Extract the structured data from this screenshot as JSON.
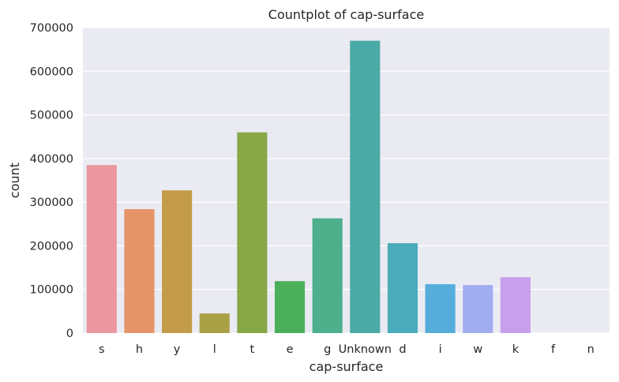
{
  "chart_data": {
    "type": "bar",
    "title": "Countplot of cap-surface",
    "xlabel": "cap-surface",
    "ylabel": "count",
    "categories": [
      "s",
      "h",
      "y",
      "l",
      "t",
      "e",
      "g",
      "Unknown",
      "d",
      "i",
      "w",
      "k",
      "f",
      "n"
    ],
    "values": [
      385000,
      284000,
      327000,
      45000,
      460000,
      119000,
      263000,
      670000,
      206000,
      112000,
      110000,
      128000,
      0,
      0
    ],
    "colors": [
      "#ec96a0",
      "#e59568",
      "#c39b49",
      "#aaa046",
      "#88a848",
      "#4cb05a",
      "#4daf8b",
      "#4aaba6",
      "#4aacbb",
      "#56addb",
      "#a2acf0",
      "#c6a0ea",
      "#e697d8",
      "#ec96bd"
    ],
    "ylim": [
      0,
      700000
    ],
    "yticks": [
      0,
      100000,
      200000,
      300000,
      400000,
      500000,
      600000,
      700000
    ],
    "grid": true,
    "legend": "none"
  }
}
